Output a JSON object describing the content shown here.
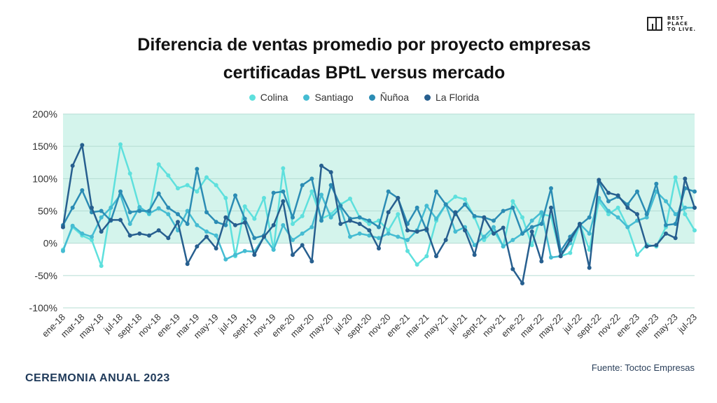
{
  "brand": {
    "logo_lines": [
      "BEST",
      "PLACE",
      "TO LIVE."
    ]
  },
  "footer": {
    "event": "CEREMONIA ANUAL 2023",
    "source": "Fuente: Toctoc Empresas"
  },
  "colors": {
    "band": "#d4f4ec",
    "grid": "#b5dcd3"
  },
  "chart_data": {
    "type": "line",
    "title": "Diferencia de ventas promedio por proyecto empresas certificadas BPtL versus mercado",
    "title_lines": [
      "Diferencia de ventas promedio por proyecto empresas",
      "certificadas BPtL versus mercado"
    ],
    "xlabel": "",
    "ylabel": "",
    "ylim": [
      -100,
      200
    ],
    "yticks": [
      -100,
      -50,
      0,
      50,
      100,
      150,
      200
    ],
    "ytick_labels": [
      "-100%",
      "-50%",
      "0%",
      "50%",
      "100%",
      "150%",
      "200%"
    ],
    "shaded_band": [
      0,
      200
    ],
    "legend_position": "top-center",
    "x": [
      "ene-18",
      "feb-18",
      "mar-18",
      "abr-18",
      "may-18",
      "jun-18",
      "jul-18",
      "ago-18",
      "sept-18",
      "oct-18",
      "nov-18",
      "dic-18",
      "ene-19",
      "feb-19",
      "mar-19",
      "abr-19",
      "may-19",
      "jun-19",
      "jul-19",
      "ago-19",
      "sept-19",
      "oct-19",
      "nov-19",
      "dic-19",
      "ene-20",
      "feb-20",
      "mar-20",
      "abr-20",
      "may-20",
      "jun-20",
      "jul-20",
      "ago-20",
      "sept-20",
      "oct-20",
      "nov-20",
      "dic-20",
      "ene-21",
      "feb-21",
      "mar-21",
      "abr-21",
      "may-21",
      "jun-21",
      "jul-21",
      "ago-21",
      "sept-21",
      "oct-21",
      "nov-21",
      "dic-21",
      "ene-22",
      "feb-22",
      "mar-22",
      "abr-22",
      "may-22",
      "jun-22",
      "jul-22",
      "ago-22",
      "sept-22",
      "oct-22",
      "nov-22",
      "dic-22",
      "ene-23",
      "feb-23",
      "mar-23",
      "abr-23",
      "may-23",
      "jun-23",
      "jul-23"
    ],
    "xtick_labels": [
      "ene-18",
      "mar-18",
      "may-18",
      "jul-18",
      "sept-18",
      "nov-18",
      "ene-19",
      "mar-19",
      "may-19",
      "jul-19",
      "sept-19",
      "nov-19",
      "ene-20",
      "mar-20",
      "may-20",
      "jul-20",
      "sept-20",
      "nov-20",
      "ene-21",
      "mar-21",
      "may-21",
      "jul-21",
      "sept-21",
      "nov-21",
      "ene-22",
      "mar-22",
      "may-22",
      "jul-22",
      "sept-22",
      "nov-22",
      "ene-23",
      "mar-23",
      "may-23",
      "jul-23"
    ],
    "series": [
      {
        "name": "Colina",
        "color": "#5ee0dd",
        "values": [
          -10,
          25,
          12,
          5,
          -35,
          55,
          153,
          108,
          55,
          45,
          122,
          105,
          85,
          90,
          80,
          102,
          90,
          70,
          -20,
          57,
          38,
          70,
          -10,
          116,
          30,
          42,
          80,
          38,
          45,
          60,
          69,
          40,
          30,
          35,
          20,
          45,
          -12,
          -33,
          -20,
          35,
          60,
          72,
          68,
          40,
          5,
          20,
          -5,
          65,
          40,
          -3,
          45,
          42,
          -20,
          -15,
          30,
          -10,
          65,
          45,
          55,
          25,
          -18,
          -2,
          -5,
          25,
          102,
          45,
          20
        ]
      },
      {
        "name": "Santiago",
        "color": "#45bcd2",
        "values": [
          -12,
          27,
          15,
          10,
          40,
          55,
          75,
          30,
          56,
          46,
          54,
          45,
          20,
          50,
          28,
          18,
          12,
          -25,
          -18,
          -12,
          -13,
          10,
          -10,
          28,
          5,
          15,
          25,
          75,
          40,
          55,
          10,
          15,
          12,
          8,
          15,
          10,
          5,
          20,
          58,
          38,
          60,
          18,
          25,
          -3,
          10,
          25,
          -5,
          5,
          15,
          35,
          48,
          -22,
          -20,
          0,
          30,
          15,
          70,
          50,
          40,
          25,
          35,
          40,
          80,
          65,
          45,
          55,
          55
        ]
      },
      {
        "name": "Ñuñoa",
        "color": "#2b8cb4",
        "values": [
          28,
          55,
          82,
          48,
          50,
          35,
          80,
          48,
          50,
          50,
          77,
          55,
          45,
          30,
          115,
          48,
          33,
          28,
          74,
          38,
          8,
          12,
          78,
          80,
          40,
          90,
          100,
          35,
          90,
          58,
          38,
          40,
          35,
          25,
          80,
          70,
          30,
          55,
          20,
          80,
          60,
          45,
          60,
          42,
          40,
          35,
          50,
          55,
          15,
          25,
          30,
          85,
          -12,
          10,
          28,
          40,
          95,
          65,
          72,
          60,
          80,
          45,
          92,
          28,
          30,
          85,
          80
        ]
      },
      {
        "name": "La Florida",
        "color": "#275f8f",
        "values": [
          25,
          120,
          152,
          55,
          18,
          36,
          36,
          12,
          15,
          12,
          20,
          8,
          33,
          -32,
          -5,
          10,
          -8,
          40,
          28,
          32,
          -18,
          10,
          28,
          65,
          -18,
          -3,
          -28,
          120,
          110,
          30,
          35,
          30,
          20,
          -8,
          48,
          70,
          20,
          18,
          22,
          -20,
          5,
          48,
          20,
          -18,
          40,
          15,
          24,
          -40,
          -62,
          18,
          -28,
          55,
          -20,
          5,
          30,
          -38,
          98,
          78,
          74,
          55,
          45,
          -5,
          -3,
          15,
          8,
          100,
          55
        ]
      }
    ]
  }
}
